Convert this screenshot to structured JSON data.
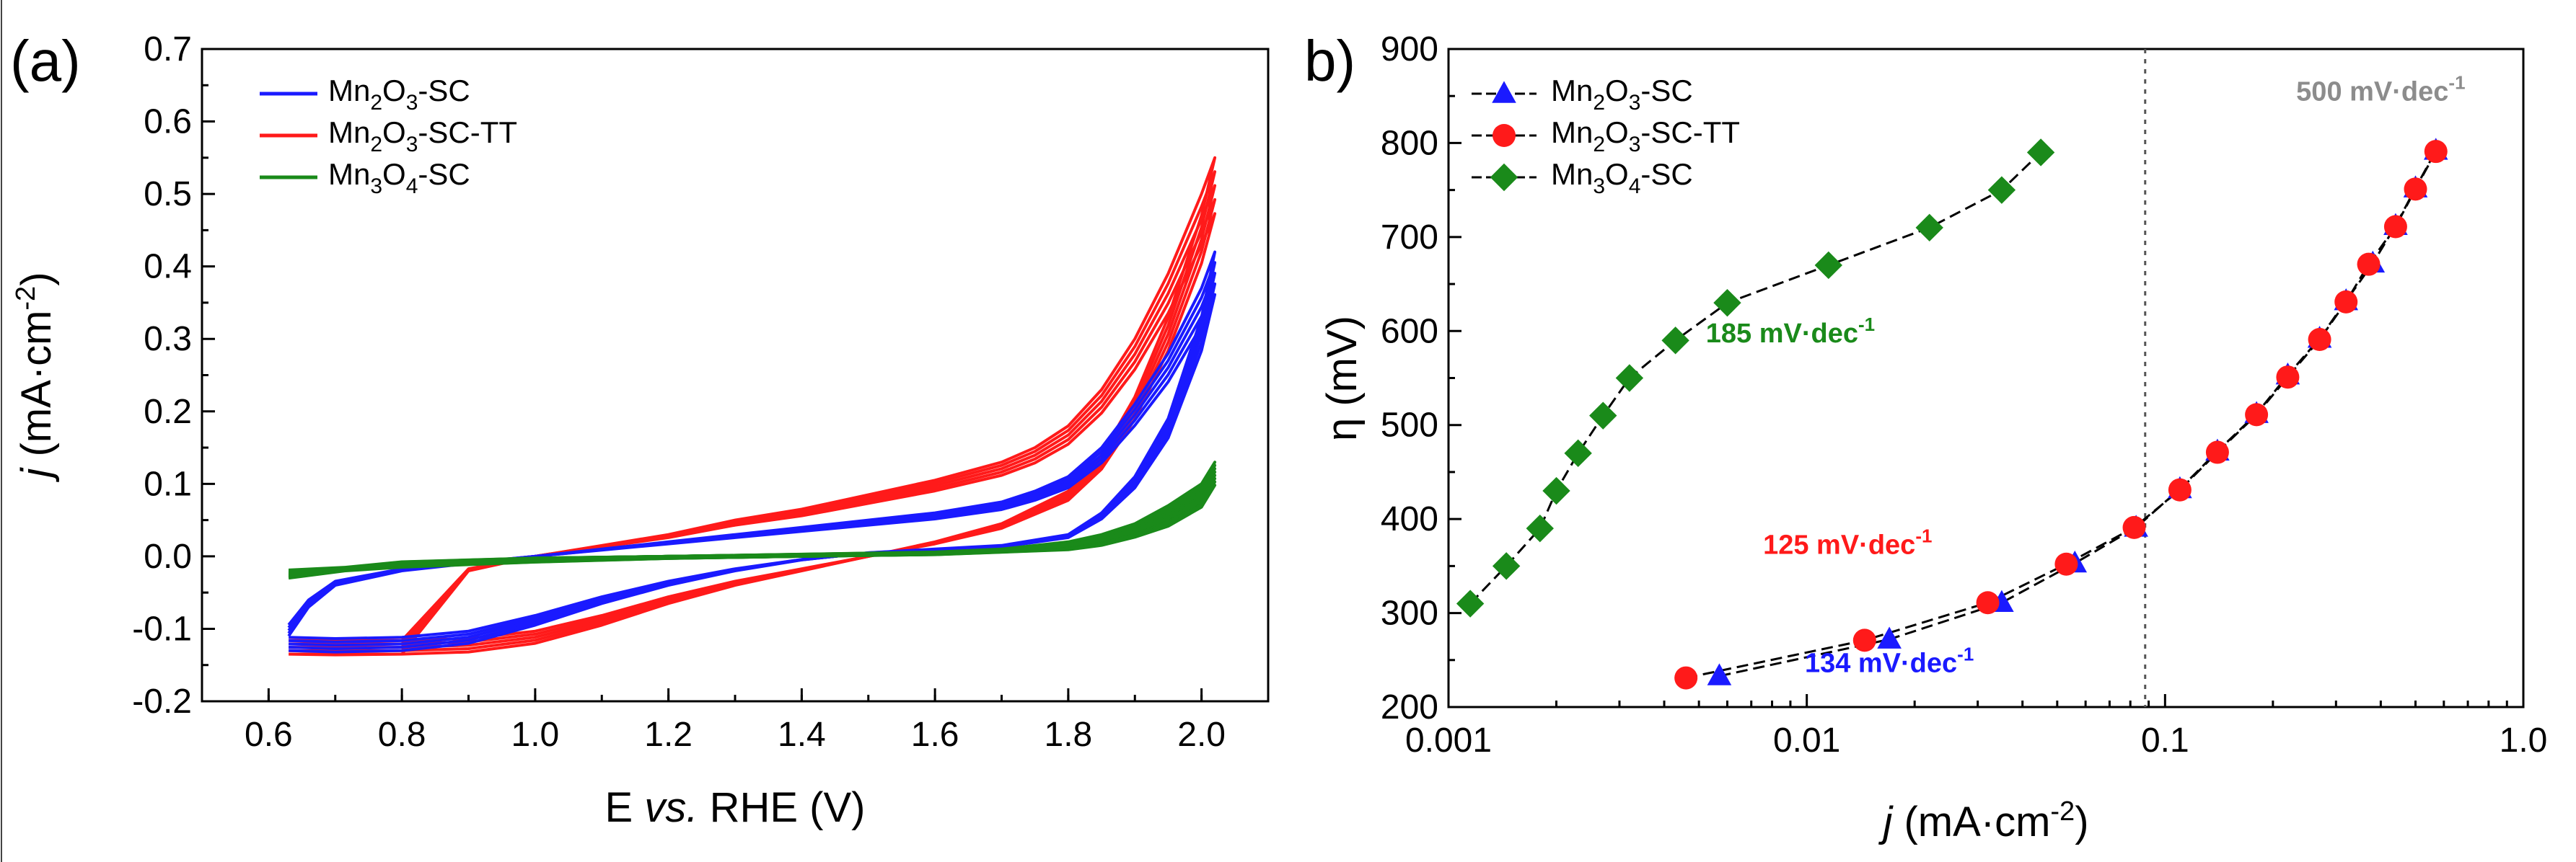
{
  "figure": {
    "panel_a": "(a)",
    "panel_b": "b)"
  },
  "colors": {
    "Mn2O3-SC": "#1a1aff",
    "Mn2O3-SC-TT": "#ff1a1a",
    "Mn3O4-SC": "#1a8a1a",
    "annotation_500": "#8c8c8c"
  },
  "chart_data": [
    {
      "type": "line",
      "panel": "(a)",
      "title": "",
      "xlabel": {
        "pre": "E ",
        "italic": "vs.",
        "post": " RHE (V)"
      },
      "ylabel": {
        "italic": "j",
        "text": " (mA·cm",
        "sup": "-2",
        "close": ")"
      },
      "xlim": [
        0.5,
        2.1
      ],
      "ylim": [
        -0.2,
        0.7
      ],
      "xticks": [
        0.6,
        0.8,
        1.0,
        1.2,
        1.4,
        1.6,
        1.8,
        2.0
      ],
      "xticklabels": [
        "0.6",
        "0.8",
        "1.0",
        "1.2",
        "1.4",
        "1.6",
        "1.8",
        "2.0"
      ],
      "yticks": [
        -0.2,
        -0.1,
        0.0,
        0.1,
        0.2,
        0.3,
        0.4,
        0.5,
        0.6,
        0.7
      ],
      "yticklabels": [
        "-0.2",
        "-0.1",
        "0.0",
        "0.1",
        "0.2",
        "0.3",
        "0.4",
        "0.5",
        "0.6",
        "0.7"
      ],
      "legend_position": "top-left",
      "legend": [
        {
          "base": "Mn",
          "sub1": "2",
          "mid": "O",
          "sub2": "3",
          "tail": "-SC"
        },
        {
          "base": "Mn",
          "sub1": "2",
          "mid": "O",
          "sub2": "3",
          "tail": "-SC-TT"
        },
        {
          "base": "Mn",
          "sub1": "3",
          "mid": "O",
          "sub2": "4",
          "tail": "-SC"
        }
      ],
      "series": [
        {
          "name": "Mn2O3-SC",
          "cycles": 5,
          "forward": [
            [
              0.63,
              -0.11
            ],
            [
              0.66,
              -0.07
            ],
            [
              0.7,
              -0.04
            ],
            [
              0.8,
              -0.02
            ],
            [
              0.9,
              -0.01
            ],
            [
              1.0,
              0.0
            ],
            [
              1.1,
              0.01
            ],
            [
              1.2,
              0.02
            ],
            [
              1.3,
              0.03
            ],
            [
              1.4,
              0.04
            ],
            [
              1.5,
              0.05
            ],
            [
              1.6,
              0.06
            ],
            [
              1.7,
              0.075
            ],
            [
              1.75,
              0.09
            ],
            [
              1.8,
              0.11
            ],
            [
              1.85,
              0.15
            ],
            [
              1.9,
              0.21
            ],
            [
              1.95,
              0.28
            ],
            [
              2.0,
              0.37
            ],
            [
              2.02,
              0.42
            ]
          ],
          "reverse": [
            [
              2.02,
              0.42
            ],
            [
              2.0,
              0.33
            ],
            [
              1.95,
              0.19
            ],
            [
              1.9,
              0.11
            ],
            [
              1.85,
              0.06
            ],
            [
              1.8,
              0.03
            ],
            [
              1.7,
              0.015
            ],
            [
              1.6,
              0.01
            ],
            [
              1.5,
              0.005
            ],
            [
              1.4,
              -0.005
            ],
            [
              1.3,
              -0.02
            ],
            [
              1.2,
              -0.04
            ],
            [
              1.1,
              -0.065
            ],
            [
              1.0,
              -0.095
            ],
            [
              0.9,
              -0.12
            ],
            [
              0.8,
              -0.13
            ],
            [
              0.7,
              -0.132
            ],
            [
              0.63,
              -0.13
            ]
          ]
        },
        {
          "name": "Mn2O3-SC-TT",
          "cycles": 5,
          "forward": [
            [
              0.63,
              -0.135
            ],
            [
              0.8,
              -0.135
            ],
            [
              0.9,
              -0.02
            ],
            [
              1.0,
              0.0
            ],
            [
              1.1,
              0.015
            ],
            [
              1.2,
              0.03
            ],
            [
              1.3,
              0.05
            ],
            [
              1.4,
              0.065
            ],
            [
              1.5,
              0.085
            ],
            [
              1.6,
              0.105
            ],
            [
              1.7,
              0.13
            ],
            [
              1.75,
              0.15
            ],
            [
              1.8,
              0.18
            ],
            [
              1.85,
              0.23
            ],
            [
              1.9,
              0.3
            ],
            [
              1.95,
              0.39
            ],
            [
              2.0,
              0.5
            ],
            [
              2.02,
              0.55
            ]
          ],
          "reverse": [
            [
              2.02,
              0.55
            ],
            [
              2.0,
              0.47
            ],
            [
              1.95,
              0.33
            ],
            [
              1.9,
              0.22
            ],
            [
              1.85,
              0.14
            ],
            [
              1.8,
              0.09
            ],
            [
              1.7,
              0.045
            ],
            [
              1.6,
              0.02
            ],
            [
              1.5,
              0.0
            ],
            [
              1.4,
              -0.02
            ],
            [
              1.3,
              -0.04
            ],
            [
              1.2,
              -0.065
            ],
            [
              1.1,
              -0.095
            ],
            [
              1.0,
              -0.12
            ],
            [
              0.9,
              -0.132
            ],
            [
              0.8,
              -0.135
            ],
            [
              0.7,
              -0.136
            ],
            [
              0.63,
              -0.135
            ]
          ]
        },
        {
          "name": "Mn3O4-SC",
          "cycles": 8,
          "forward": [
            [
              0.63,
              -0.03
            ],
            [
              0.8,
              -0.01
            ],
            [
              1.0,
              -0.003
            ],
            [
              1.2,
              0.0
            ],
            [
              1.4,
              0.003
            ],
            [
              1.6,
              0.006
            ],
            [
              1.7,
              0.01
            ],
            [
              1.8,
              0.02
            ],
            [
              1.85,
              0.03
            ],
            [
              1.9,
              0.045
            ],
            [
              1.95,
              0.07
            ],
            [
              2.0,
              0.1
            ],
            [
              2.02,
              0.13
            ]
          ],
          "reverse": [
            [
              2.02,
              0.13
            ],
            [
              2.0,
              0.09
            ],
            [
              1.95,
              0.055
            ],
            [
              1.9,
              0.035
            ],
            [
              1.85,
              0.02
            ],
            [
              1.8,
              0.012
            ],
            [
              1.6,
              0.003
            ],
            [
              1.4,
              0.0
            ],
            [
              1.2,
              -0.003
            ],
            [
              1.0,
              -0.008
            ],
            [
              0.8,
              -0.015
            ],
            [
              0.63,
              -0.025
            ]
          ]
        }
      ]
    },
    {
      "type": "line",
      "panel": "b)",
      "title": "",
      "xscale": "log",
      "xlabel": {
        "italic": "j",
        "text": " (mA·cm",
        "sup": "-2",
        "close": ")"
      },
      "ylabel": "η (mV)",
      "xlim": [
        0.001,
        1.0
      ],
      "ylim": [
        200,
        900
      ],
      "xticks": [
        0.001,
        0.01,
        0.1,
        1.0
      ],
      "xticklabels": [
        "0.001",
        "0.01",
        "0.1",
        "1.0"
      ],
      "yticks": [
        200,
        300,
        400,
        500,
        600,
        700,
        800,
        900
      ],
      "yticklabels": [
        "200",
        "300",
        "400",
        "500",
        "600",
        "700",
        "800",
        "900"
      ],
      "vline_x": 0.088,
      "legend_position": "top-left",
      "legend": [
        {
          "base": "Mn",
          "sub1": "2",
          "mid": "O",
          "sub2": "3",
          "tail": "-SC"
        },
        {
          "base": "Mn",
          "sub1": "2",
          "mid": "O",
          "sub2": "3",
          "tail": "-SC-TT"
        },
        {
          "base": "Mn",
          "sub1": "3",
          "mid": "O",
          "sub2": "4",
          "tail": "-SC"
        }
      ],
      "annotations": [
        {
          "num": "500 mV·dec",
          "sup": "-1",
          "color": "annotation_500",
          "x": 0.4,
          "y": 845
        },
        {
          "num": "185 mV·dec",
          "sup": "-1",
          "color": "Mn3O4-SC",
          "x": 0.009,
          "y": 588
        },
        {
          "num": "125 mV·dec",
          "sup": "-1",
          "color": "Mn2O3-SC-TT",
          "x": 0.013,
          "y": 363
        },
        {
          "num": "134 mV·dec",
          "sup": "-1",
          "color": "Mn2O3-SC",
          "x": 0.017,
          "y": 237
        }
      ],
      "series": [
        {
          "name": "Mn2O3-SC",
          "marker": "triangle",
          "points": [
            [
              0.0057,
              233
            ],
            [
              0.017,
              272
            ],
            [
              0.035,
              311
            ],
            [
              0.056,
              353
            ],
            [
              0.083,
              391
            ],
            [
              0.11,
              432
            ],
            [
              0.14,
              472
            ],
            [
              0.18,
              512
            ],
            [
              0.22,
              553
            ],
            [
              0.27,
              592
            ],
            [
              0.32,
              632
            ],
            [
              0.38,
              672
            ],
            [
              0.44,
              712
            ],
            [
              0.5,
              752
            ],
            [
              0.57,
              792
            ]
          ]
        },
        {
          "name": "Mn2O3-SC-TT",
          "marker": "circle",
          "points": [
            [
              0.0046,
              231
            ],
            [
              0.0145,
              271
            ],
            [
              0.032,
              311
            ],
            [
              0.053,
              352
            ],
            [
              0.082,
              391
            ],
            [
              0.11,
              431
            ],
            [
              0.14,
              471
            ],
            [
              0.18,
              511
            ],
            [
              0.22,
              551
            ],
            [
              0.27,
              591
            ],
            [
              0.32,
              631
            ],
            [
              0.37,
              671
            ],
            [
              0.44,
              711
            ],
            [
              0.5,
              751
            ],
            [
              0.57,
              791
            ]
          ]
        },
        {
          "name": "Mn3O4-SC",
          "marker": "diamond",
          "points": [
            [
              0.00115,
              310
            ],
            [
              0.00145,
              350
            ],
            [
              0.0018,
              390
            ],
            [
              0.002,
              430
            ],
            [
              0.0023,
              470
            ],
            [
              0.0027,
              510
            ],
            [
              0.0032,
              550
            ],
            [
              0.0043,
              590
            ],
            [
              0.006,
              630
            ],
            [
              0.0115,
              670
            ],
            [
              0.022,
              710
            ],
            [
              0.035,
              750
            ],
            [
              0.045,
              790
            ]
          ]
        }
      ]
    }
  ]
}
